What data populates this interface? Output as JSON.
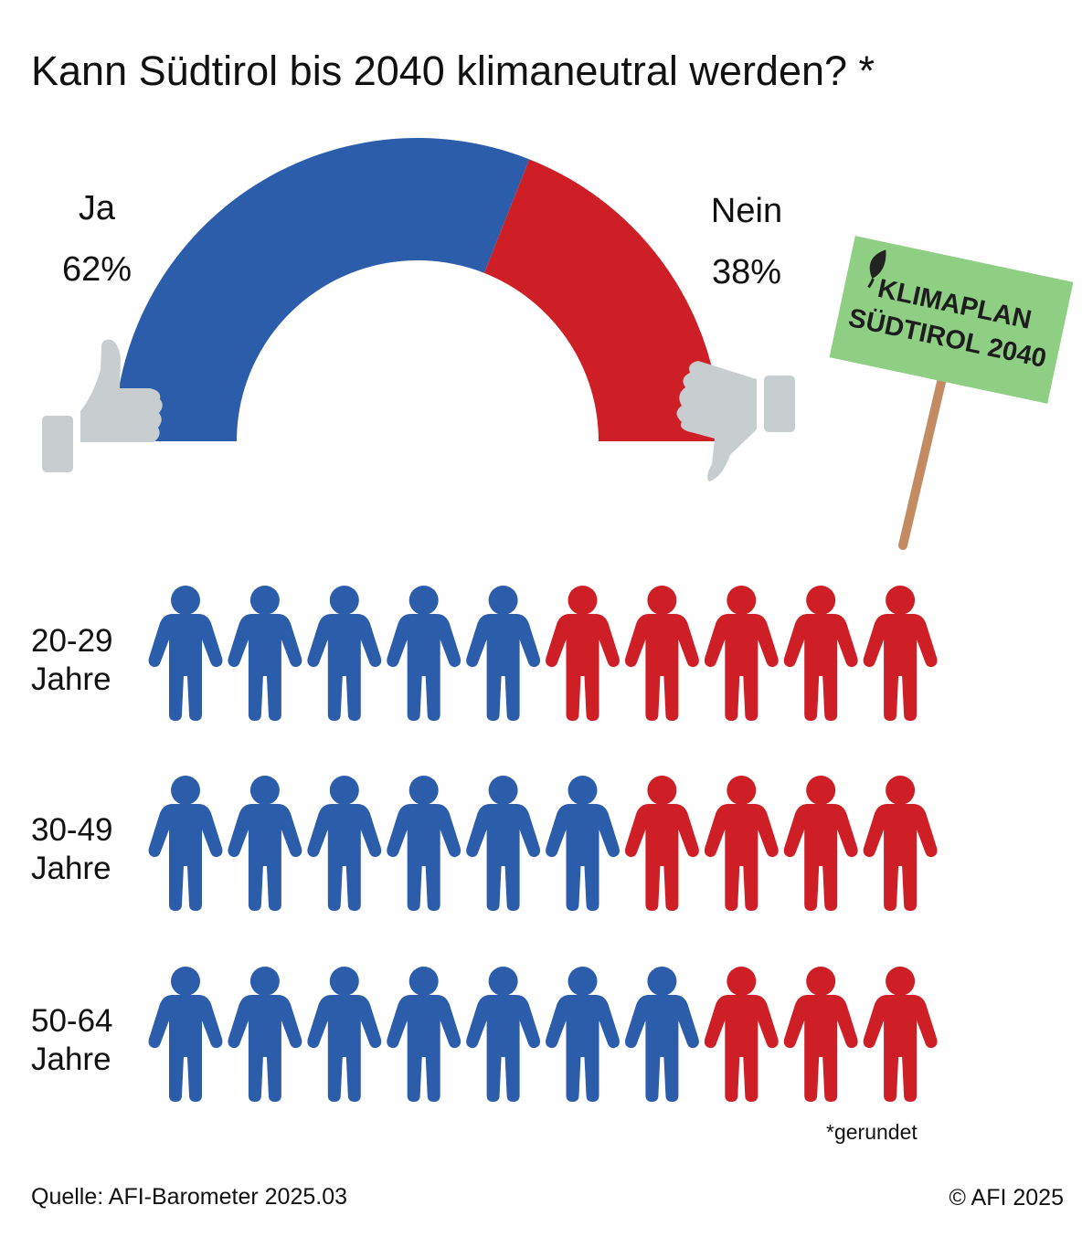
{
  "title": "Kann Südtirol bis 2040 klimaneutral werden? *",
  "colors": {
    "ja": "#2c5dab",
    "nein": "#cf1f26",
    "thumb": "#c8cdd0",
    "sign": "#8fcf84",
    "pole": "#c48b63"
  },
  "icons": [
    "thumbs-up-icon",
    "thumbs-down-icon",
    "leaf-icon",
    "person-icon"
  ],
  "sign": {
    "line1": "KLIMAPLAN",
    "line2": "SÜDTIROL 2040"
  },
  "chart_data": [
    {
      "type": "pie",
      "variant": "half-donut",
      "categories": [
        "Ja",
        "Nein"
      ],
      "values": [
        62,
        38
      ],
      "labels": [
        "62%",
        "38%"
      ]
    },
    {
      "type": "bar",
      "variant": "pictogram",
      "icon_units": 10,
      "categories": [
        {
          "line1": "20-29",
          "line2": "Jahre"
        },
        {
          "line1": "30-49",
          "line2": "Jahre"
        },
        {
          "line1": "50-64",
          "line2": "Jahre"
        }
      ],
      "series": [
        {
          "values": [
            5,
            6,
            7
          ]
        },
        {
          "values": [
            5,
            4,
            3
          ]
        }
      ]
    }
  ],
  "footnote": "*gerundet",
  "source": "Quelle: AFI-Barometer 2025.03",
  "copyright": "© AFI 2025"
}
